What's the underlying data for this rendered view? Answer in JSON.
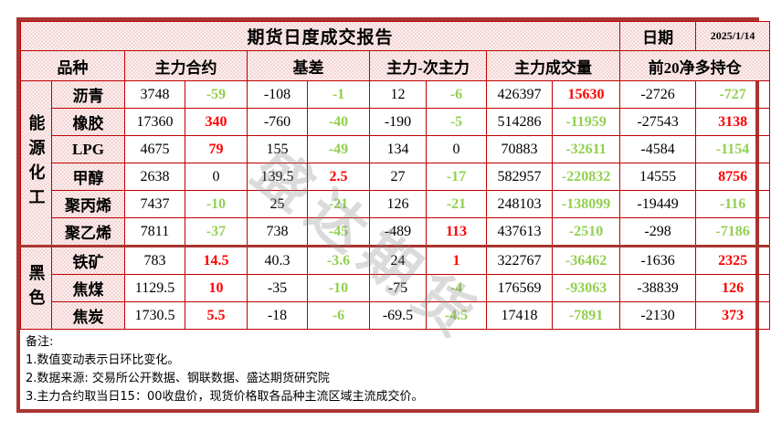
{
  "title": "期货日度成交报告",
  "date_label": "日期",
  "date_value": "2025/1/14",
  "watermark": "盛达期货",
  "palette": {
    "grid_red": "#C00000",
    "frame_red": "#A93531",
    "up_red": "#FF0000",
    "down_green": "#92D050",
    "pattern_pink": "#F2C6C6"
  },
  "columns": [
    "品种",
    "主力合约",
    "基差",
    "主力-次主力",
    "主力成交量",
    "前20净多持仓"
  ],
  "groups": [
    {
      "name": "能源化工",
      "rows": [
        {
          "name": "沥青",
          "cells": [
            {
              "v": "3748",
              "cls": "val"
            },
            {
              "v": "-59",
              "cls": "neg"
            },
            {
              "v": "-108",
              "cls": "val"
            },
            {
              "v": "-1",
              "cls": "neg"
            },
            {
              "v": "12",
              "cls": "val"
            },
            {
              "v": "-6",
              "cls": "neg"
            },
            {
              "v": "426397",
              "cls": "val"
            },
            {
              "v": "15630",
              "cls": "pos"
            },
            {
              "v": "-2726",
              "cls": "val"
            },
            {
              "v": "-727",
              "cls": "neg"
            }
          ]
        },
        {
          "name": "橡胶",
          "cells": [
            {
              "v": "17360",
              "cls": "val"
            },
            {
              "v": "340",
              "cls": "pos"
            },
            {
              "v": "-760",
              "cls": "val"
            },
            {
              "v": "-40",
              "cls": "neg"
            },
            {
              "v": "-190",
              "cls": "val"
            },
            {
              "v": "-5",
              "cls": "neg"
            },
            {
              "v": "514286",
              "cls": "val"
            },
            {
              "v": "-11959",
              "cls": "neg"
            },
            {
              "v": "-27543",
              "cls": "val"
            },
            {
              "v": "3138",
              "cls": "pos"
            }
          ]
        },
        {
          "name": "LPG",
          "cells": [
            {
              "v": "4675",
              "cls": "val"
            },
            {
              "v": "79",
              "cls": "pos"
            },
            {
              "v": "155",
              "cls": "val"
            },
            {
              "v": "-49",
              "cls": "neg"
            },
            {
              "v": "134",
              "cls": "val"
            },
            {
              "v": "0",
              "cls": "zero"
            },
            {
              "v": "70883",
              "cls": "val"
            },
            {
              "v": "-32611",
              "cls": "neg"
            },
            {
              "v": "-4584",
              "cls": "val"
            },
            {
              "v": "-1154",
              "cls": "neg"
            }
          ]
        },
        {
          "name": "甲醇",
          "cells": [
            {
              "v": "2638",
              "cls": "val"
            },
            {
              "v": "0",
              "cls": "zero"
            },
            {
              "v": "139.5",
              "cls": "val"
            },
            {
              "v": "2.5",
              "cls": "pos"
            },
            {
              "v": "27",
              "cls": "val"
            },
            {
              "v": "-17",
              "cls": "neg"
            },
            {
              "v": "582957",
              "cls": "val"
            },
            {
              "v": "-220832",
              "cls": "neg"
            },
            {
              "v": "14555",
              "cls": "val"
            },
            {
              "v": "8756",
              "cls": "pos"
            }
          ]
        },
        {
          "name": "聚丙烯",
          "cells": [
            {
              "v": "7437",
              "cls": "val"
            },
            {
              "v": "-10",
              "cls": "neg"
            },
            {
              "v": "25",
              "cls": "val"
            },
            {
              "v": "-21",
              "cls": "neg"
            },
            {
              "v": "126",
              "cls": "val"
            },
            {
              "v": "-21",
              "cls": "neg"
            },
            {
              "v": "248103",
              "cls": "val"
            },
            {
              "v": "-138099",
              "cls": "neg"
            },
            {
              "v": "-19449",
              "cls": "val"
            },
            {
              "v": "-116",
              "cls": "neg"
            }
          ]
        },
        {
          "name": "聚乙烯",
          "cells": [
            {
              "v": "7811",
              "cls": "val"
            },
            {
              "v": "-37",
              "cls": "neg"
            },
            {
              "v": "738",
              "cls": "val"
            },
            {
              "v": "-45",
              "cls": "neg"
            },
            {
              "v": "-489",
              "cls": "val"
            },
            {
              "v": "113",
              "cls": "pos"
            },
            {
              "v": "437613",
              "cls": "val"
            },
            {
              "v": "-2510",
              "cls": "neg"
            },
            {
              "v": "-298",
              "cls": "val"
            },
            {
              "v": "-7186",
              "cls": "neg"
            }
          ]
        }
      ]
    },
    {
      "name": "黑色",
      "rows": [
        {
          "name": "铁矿",
          "cells": [
            {
              "v": "783",
              "cls": "val"
            },
            {
              "v": "14.5",
              "cls": "pos"
            },
            {
              "v": "40.3",
              "cls": "val"
            },
            {
              "v": "-3.6",
              "cls": "neg"
            },
            {
              "v": "24",
              "cls": "val"
            },
            {
              "v": "1",
              "cls": "pos"
            },
            {
              "v": "322767",
              "cls": "val"
            },
            {
              "v": "-36462",
              "cls": "neg"
            },
            {
              "v": "-1636",
              "cls": "val"
            },
            {
              "v": "2325",
              "cls": "pos"
            }
          ]
        },
        {
          "name": "焦煤",
          "cells": [
            {
              "v": "1129.5",
              "cls": "val"
            },
            {
              "v": "10",
              "cls": "pos"
            },
            {
              "v": "-35",
              "cls": "val"
            },
            {
              "v": "-10",
              "cls": "neg"
            },
            {
              "v": "-75",
              "cls": "val"
            },
            {
              "v": "-4",
              "cls": "neg"
            },
            {
              "v": "176569",
              "cls": "val"
            },
            {
              "v": "-93063",
              "cls": "neg"
            },
            {
              "v": "-38839",
              "cls": "val"
            },
            {
              "v": "126",
              "cls": "pos"
            }
          ]
        },
        {
          "name": "焦炭",
          "cells": [
            {
              "v": "1730.5",
              "cls": "val"
            },
            {
              "v": "5.5",
              "cls": "pos"
            },
            {
              "v": "-18",
              "cls": "val"
            },
            {
              "v": "-6",
              "cls": "neg"
            },
            {
              "v": "-69.5",
              "cls": "val"
            },
            {
              "v": "-4.5",
              "cls": "neg"
            },
            {
              "v": "17418",
              "cls": "val"
            },
            {
              "v": "-7891",
              "cls": "neg"
            },
            {
              "v": "-2130",
              "cls": "val"
            },
            {
              "v": "373",
              "cls": "pos"
            }
          ]
        }
      ]
    }
  ],
  "notes": [
    "备注:",
    "1.数值变动表示日环比变化。",
    "2.数据来源: 交易所公开数据、钢联数据、盛达期货研究院",
    "3.主力合约取当日15：00收盘价，现货价格取各品种主流区域主流成交价。"
  ]
}
